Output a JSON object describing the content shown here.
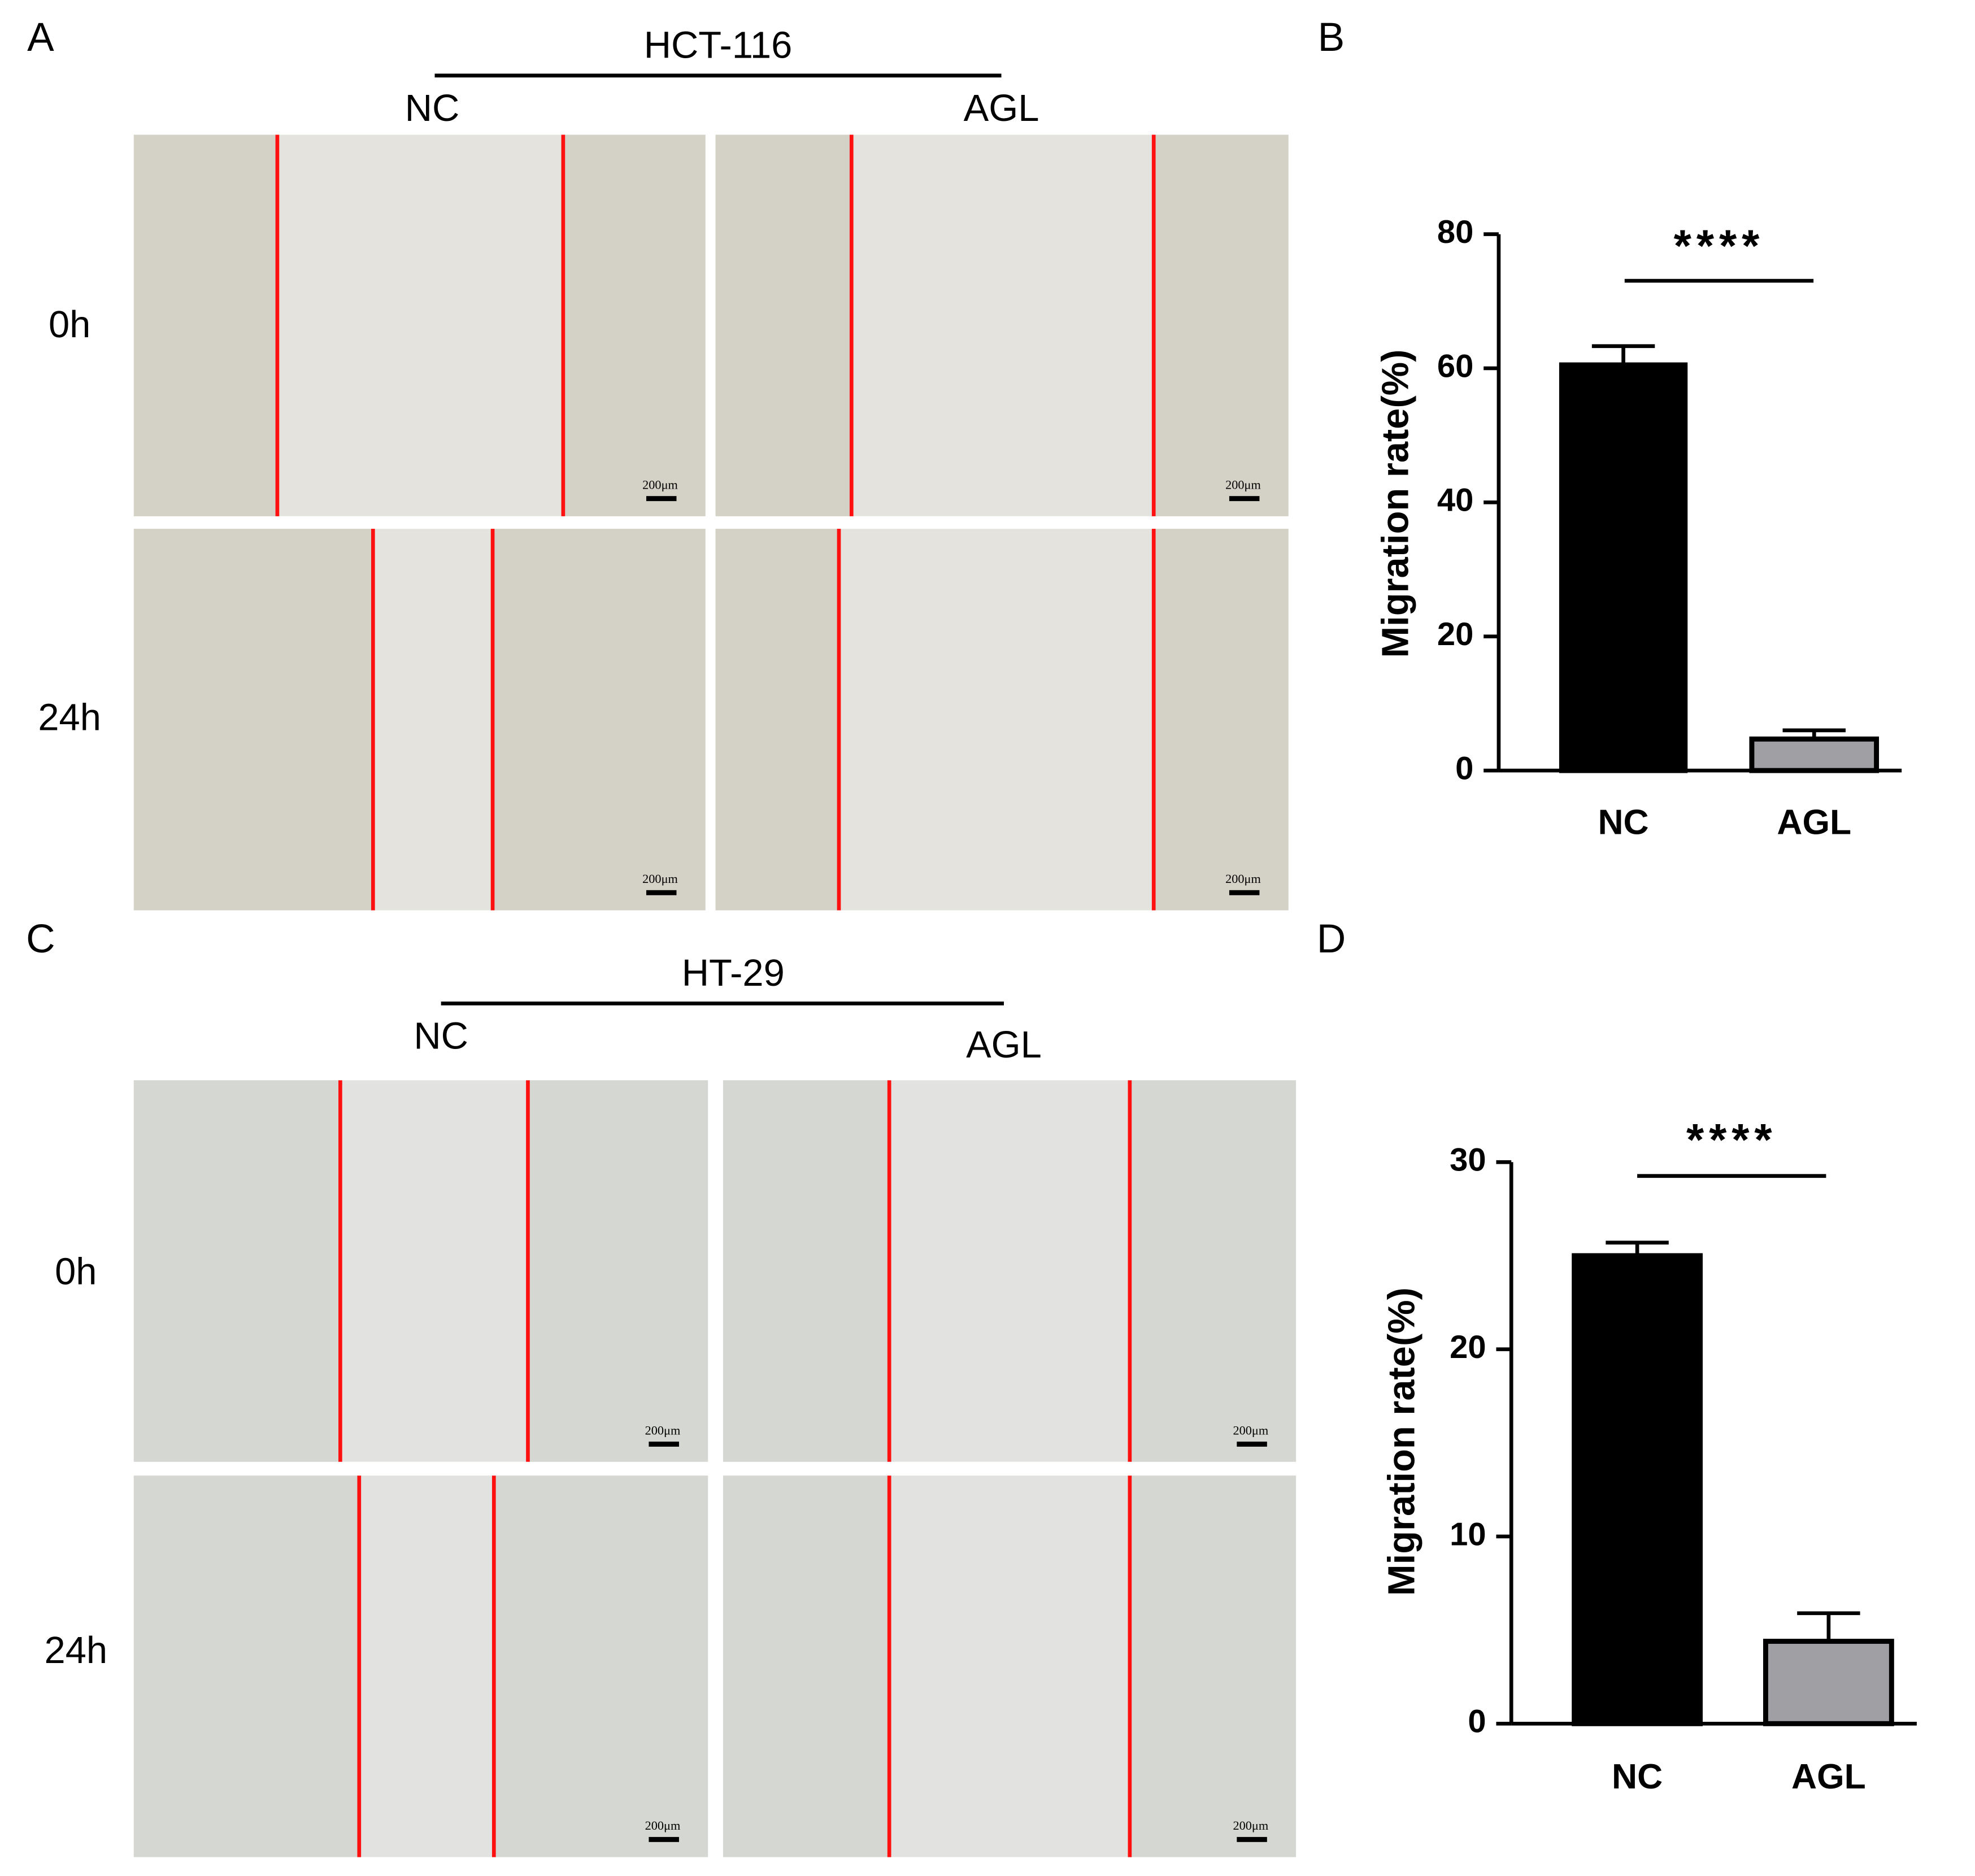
{
  "panels": [
    {
      "letter": "A",
      "cell_line": "HCT-116",
      "groups": [
        "NC",
        "AGL"
      ],
      "times": [
        "0h",
        "24h"
      ],
      "scale_bar": "200μm"
    },
    {
      "letter": "C",
      "cell_line": "HT-29",
      "groups": [
        "NC",
        "AGL"
      ],
      "times": [
        "0h",
        "24h"
      ],
      "scale_bar": "200μm"
    }
  ],
  "chart_data": [
    {
      "type": "bar",
      "panel": "B",
      "ylabel": "Migration rate(%)",
      "categories": [
        "NC",
        "AGL"
      ],
      "values": [
        60.5,
        4.7
      ],
      "errors": [
        2.8,
        1.3
      ],
      "colors": [
        "#000000",
        "#a0a0a4"
      ],
      "ylim": [
        0,
        80
      ],
      "yticks": [
        0,
        20,
        40,
        60,
        80
      ],
      "significance": "****"
    },
    {
      "type": "bar",
      "panel": "D",
      "ylabel": "Migration rate(%)",
      "categories": [
        "NC",
        "AGL"
      ],
      "values": [
        25.0,
        4.4
      ],
      "errors": [
        0.7,
        1.5
      ],
      "colors": [
        "#000000",
        "#a0a0a4"
      ],
      "ylim": [
        0,
        30
      ],
      "yticks": [
        0,
        10,
        20,
        30
      ],
      "significance": "****"
    }
  ]
}
